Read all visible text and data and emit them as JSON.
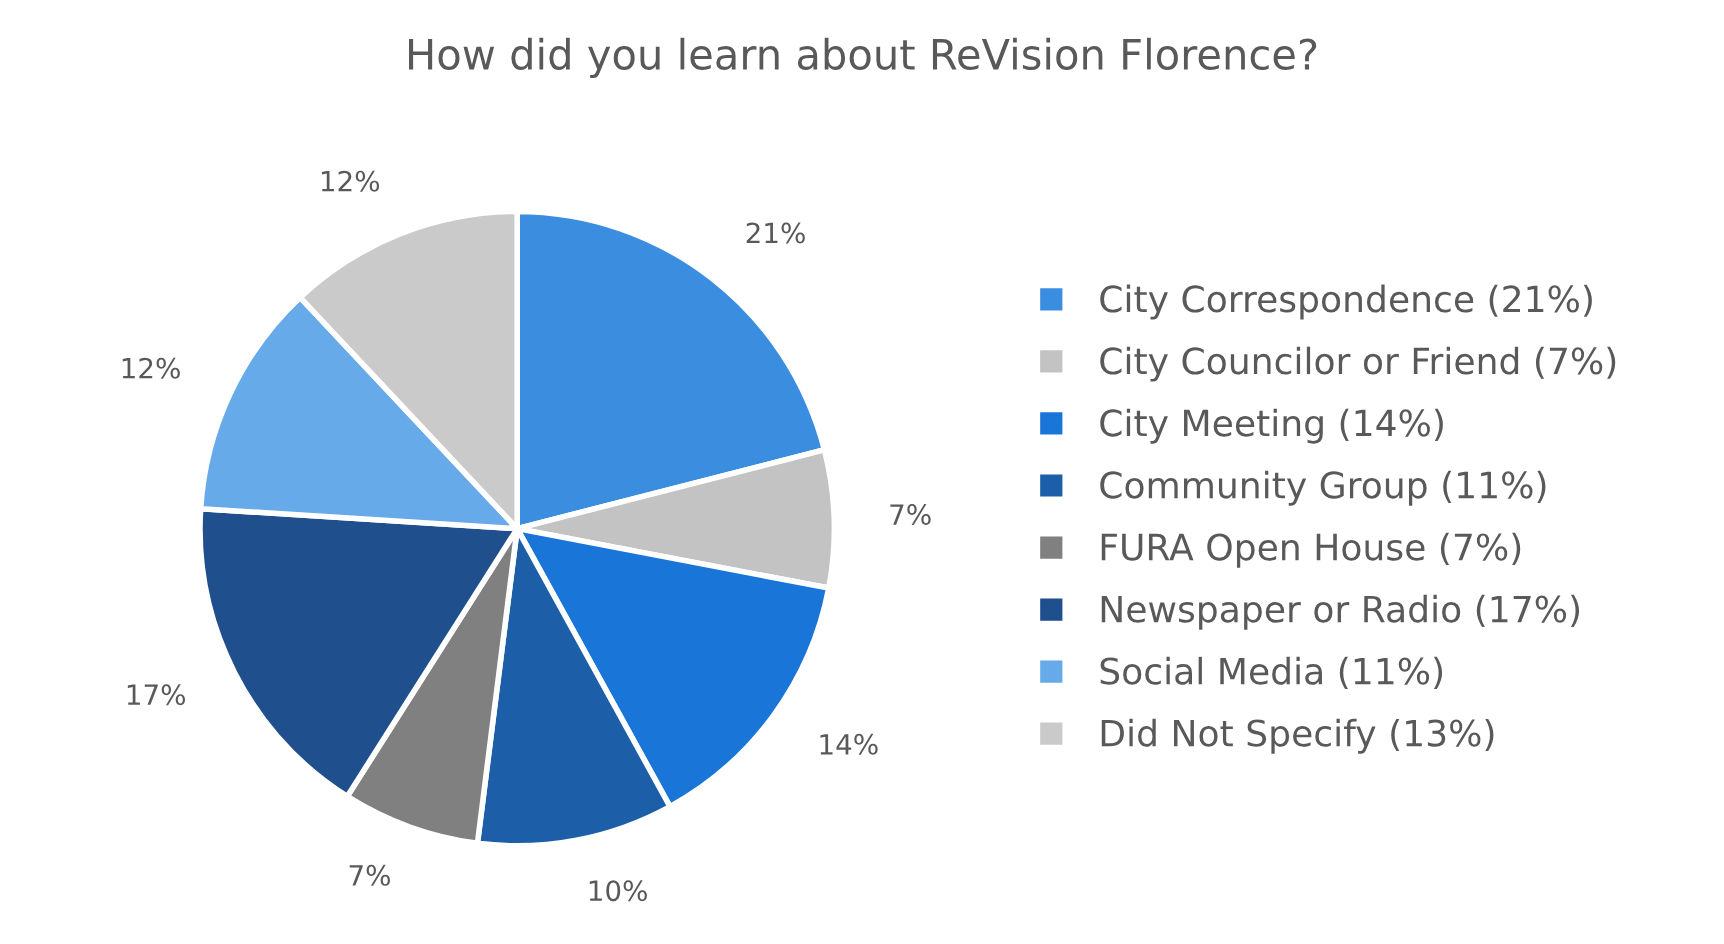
{
  "chart_data": {
    "type": "pie",
    "title": "How did you learn about ReVision Florence?",
    "categories": [
      "City Correspondence (21%)",
      "City Councilor or Friend (7%)",
      "City Meeting (14%)",
      "Community Group (11%)",
      "FURA Open House (7%)",
      "Newspaper or Radio (17%)",
      "Social Media (11%)",
      "Did Not Specify (13%)"
    ],
    "values": [
      21,
      7,
      14,
      10,
      7,
      17,
      12,
      12
    ],
    "value_labels": [
      "21%",
      "7%",
      "14%",
      "10%",
      "7%",
      "17%",
      "12%",
      "12%"
    ],
    "colors": [
      "#3b8de0",
      "#c3c3c3",
      "#1976d8",
      "#1c5fa8",
      "#808080",
      "#1f4f8c",
      "#67aaea",
      "#cacaca"
    ],
    "legend": "right"
  }
}
